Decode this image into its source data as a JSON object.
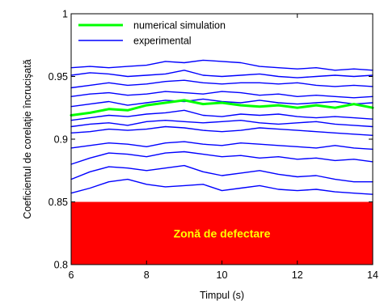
{
  "chart_data": {
    "type": "line",
    "xlabel": "Timpul (s)",
    "ylabel": "Coeficientul de corelaţie încrucişată",
    "xlim": [
      6,
      14
    ],
    "ylim": [
      0.8,
      1.0
    ],
    "xticks": [
      6,
      8,
      10,
      12,
      14
    ],
    "yticks": [
      0.8,
      0.85,
      0.9,
      0.95,
      1.0
    ],
    "xtick_labels": [
      "6",
      "8",
      "10",
      "12",
      "14"
    ],
    "ytick_labels": [
      "0.8",
      "0.85",
      "0.9",
      "0.95",
      "1"
    ],
    "grid": false,
    "legend_position": "top-left",
    "region": {
      "label": "Zonă de defectare",
      "y_from": 0.8,
      "y_to": 0.85,
      "fill_color": "#ff0000",
      "text_color": "#ffff00"
    },
    "legend": [
      {
        "label": "numerical simulation",
        "color": "#00ff00"
      },
      {
        "label": "experimental",
        "color": "#0000ff"
      }
    ],
    "series": [
      {
        "name": "numerical simulation",
        "color": "#00ff00",
        "x": [
          6.0,
          6.5,
          7.0,
          7.5,
          8.0,
          8.5,
          9.0,
          9.5,
          10.0,
          10.5,
          11.0,
          11.5,
          12.0,
          12.5,
          13.0,
          13.5,
          14.0
        ],
        "y": [
          0.919,
          0.921,
          0.924,
          0.923,
          0.927,
          0.929,
          0.931,
          0.928,
          0.929,
          0.927,
          0.926,
          0.927,
          0.925,
          0.927,
          0.925,
          0.928,
          0.925
        ]
      },
      {
        "name": "experimental",
        "color": "#0000ff",
        "x": [
          6.0,
          6.5,
          7.0,
          7.5,
          8.0,
          8.5,
          9.0,
          9.5,
          10.0,
          10.5,
          11.0,
          11.5,
          12.0,
          12.5,
          13.0,
          13.5,
          14.0
        ],
        "y": [
          0.957,
          0.958,
          0.957,
          0.958,
          0.959,
          0.962,
          0.961,
          0.963,
          0.962,
          0.961,
          0.958,
          0.957,
          0.956,
          0.957,
          0.955,
          0.956,
          0.955
        ]
      },
      {
        "color": "#0000ff",
        "x": [
          6.0,
          6.5,
          7.0,
          7.5,
          8.0,
          8.5,
          9.0,
          9.5,
          10.0,
          10.5,
          11.0,
          11.5,
          12.0,
          12.5,
          13.0,
          13.5,
          14.0
        ],
        "y": [
          0.951,
          0.953,
          0.952,
          0.95,
          0.951,
          0.952,
          0.955,
          0.951,
          0.95,
          0.951,
          0.952,
          0.95,
          0.949,
          0.95,
          0.951,
          0.95,
          0.951
        ]
      },
      {
        "color": "#0000ff",
        "x": [
          6.0,
          6.5,
          7.0,
          7.5,
          8.0,
          8.5,
          9.0,
          9.5,
          10.0,
          10.5,
          11.0,
          11.5,
          12.0,
          12.5,
          13.0,
          13.5,
          14.0
        ],
        "y": [
          0.941,
          0.943,
          0.945,
          0.943,
          0.944,
          0.946,
          0.947,
          0.945,
          0.944,
          0.945,
          0.945,
          0.944,
          0.945,
          0.943,
          0.942,
          0.943,
          0.942
        ]
      },
      {
        "color": "#0000ff",
        "x": [
          6.0,
          6.5,
          7.0,
          7.5,
          8.0,
          8.5,
          9.0,
          9.5,
          10.0,
          10.5,
          11.0,
          11.5,
          12.0,
          12.5,
          13.0,
          13.5,
          14.0
        ],
        "y": [
          0.934,
          0.936,
          0.937,
          0.935,
          0.936,
          0.938,
          0.937,
          0.936,
          0.938,
          0.937,
          0.935,
          0.936,
          0.934,
          0.935,
          0.934,
          0.933,
          0.934
        ]
      },
      {
        "color": "#0000ff",
        "x": [
          6.0,
          6.5,
          7.0,
          7.5,
          8.0,
          8.5,
          9.0,
          9.5,
          10.0,
          10.5,
          11.0,
          11.5,
          12.0,
          12.5,
          13.0,
          13.5,
          14.0
        ],
        "y": [
          0.926,
          0.928,
          0.93,
          0.927,
          0.929,
          0.931,
          0.93,
          0.932,
          0.93,
          0.929,
          0.931,
          0.929,
          0.928,
          0.929,
          0.93,
          0.928,
          0.929
        ]
      },
      {
        "color": "#0000ff",
        "x": [
          6.0,
          6.5,
          7.0,
          7.5,
          8.0,
          8.5,
          9.0,
          9.5,
          10.0,
          10.5,
          11.0,
          11.5,
          12.0,
          12.5,
          13.0,
          13.5,
          14.0
        ],
        "y": [
          0.915,
          0.917,
          0.919,
          0.918,
          0.92,
          0.921,
          0.923,
          0.919,
          0.918,
          0.92,
          0.919,
          0.92,
          0.918,
          0.917,
          0.918,
          0.917,
          0.916
        ]
      },
      {
        "color": "#0000ff",
        "x": [
          6.0,
          6.5,
          7.0,
          7.5,
          8.0,
          8.5,
          9.0,
          9.5,
          10.0,
          10.5,
          11.0,
          11.5,
          12.0,
          12.5,
          13.0,
          13.5,
          14.0
        ],
        "y": [
          0.91,
          0.912,
          0.913,
          0.911,
          0.914,
          0.915,
          0.914,
          0.913,
          0.914,
          0.915,
          0.913,
          0.912,
          0.913,
          0.914,
          0.912,
          0.911,
          0.91
        ]
      },
      {
        "color": "#0000ff",
        "x": [
          6.0,
          6.5,
          7.0,
          7.5,
          8.0,
          8.5,
          9.0,
          9.5,
          10.0,
          10.5,
          11.0,
          11.5,
          12.0,
          12.5,
          13.0,
          13.5,
          14.0
        ],
        "y": [
          0.905,
          0.906,
          0.908,
          0.907,
          0.908,
          0.91,
          0.909,
          0.907,
          0.906,
          0.907,
          0.909,
          0.908,
          0.907,
          0.906,
          0.905,
          0.904,
          0.903
        ]
      },
      {
        "color": "#0000ff",
        "x": [
          6.0,
          6.5,
          7.0,
          7.5,
          8.0,
          8.5,
          9.0,
          9.5,
          10.0,
          10.5,
          11.0,
          11.5,
          12.0,
          12.5,
          13.0,
          13.5,
          14.0
        ],
        "y": [
          0.893,
          0.895,
          0.897,
          0.896,
          0.894,
          0.897,
          0.898,
          0.896,
          0.895,
          0.897,
          0.896,
          0.895,
          0.894,
          0.893,
          0.895,
          0.893,
          0.892
        ]
      },
      {
        "color": "#0000ff",
        "x": [
          6.0,
          6.5,
          7.0,
          7.5,
          8.0,
          8.5,
          9.0,
          9.5,
          10.0,
          10.5,
          11.0,
          11.5,
          12.0,
          12.5,
          13.0,
          13.5,
          14.0
        ],
        "y": [
          0.88,
          0.885,
          0.889,
          0.888,
          0.886,
          0.889,
          0.89,
          0.888,
          0.886,
          0.887,
          0.885,
          0.886,
          0.884,
          0.885,
          0.883,
          0.884,
          0.882
        ]
      },
      {
        "color": "#0000ff",
        "x": [
          6.0,
          6.5,
          7.0,
          7.5,
          8.0,
          8.5,
          9.0,
          9.5,
          10.0,
          10.5,
          11.0,
          11.5,
          12.0,
          12.5,
          13.0,
          13.5,
          14.0
        ],
        "y": [
          0.868,
          0.874,
          0.878,
          0.877,
          0.875,
          0.877,
          0.879,
          0.874,
          0.871,
          0.873,
          0.875,
          0.872,
          0.87,
          0.871,
          0.868,
          0.866,
          0.866
        ]
      },
      {
        "color": "#0000ff",
        "x": [
          6.0,
          6.5,
          7.0,
          7.5,
          8.0,
          8.5,
          9.0,
          9.5,
          10.0,
          10.5,
          11.0,
          11.5,
          12.0,
          12.5,
          13.0,
          13.5,
          14.0
        ],
        "y": [
          0.857,
          0.861,
          0.866,
          0.868,
          0.864,
          0.862,
          0.863,
          0.864,
          0.859,
          0.861,
          0.863,
          0.86,
          0.859,
          0.86,
          0.858,
          0.857,
          0.856
        ]
      }
    ]
  }
}
